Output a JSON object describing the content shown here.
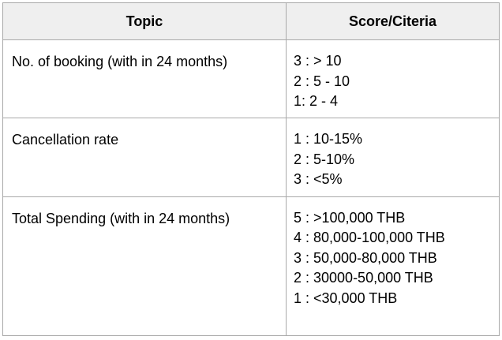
{
  "table": {
    "headers": {
      "topic": "Topic",
      "score": "Score/Citeria"
    },
    "rows": [
      {
        "topic": "No. of booking (with in 24 months)",
        "scores": [
          "3 : > 10",
          "2 : 5 - 10",
          "1: 2 - 4"
        ]
      },
      {
        "topic": "Cancellation rate",
        "scores": [
          "1 : 10-15%",
          "2 : 5-10%",
          "3 : <5%"
        ]
      },
      {
        "topic": "Total Spending (with in 24 months)",
        "scores": [
          "5 : >100,000 THB",
          "4 : 80,000-100,000 THB",
          "3 : 50,000-80,000 THB",
          "2 : 30000-50,000 THB",
          "1 : <30,000 THB"
        ]
      }
    ]
  }
}
